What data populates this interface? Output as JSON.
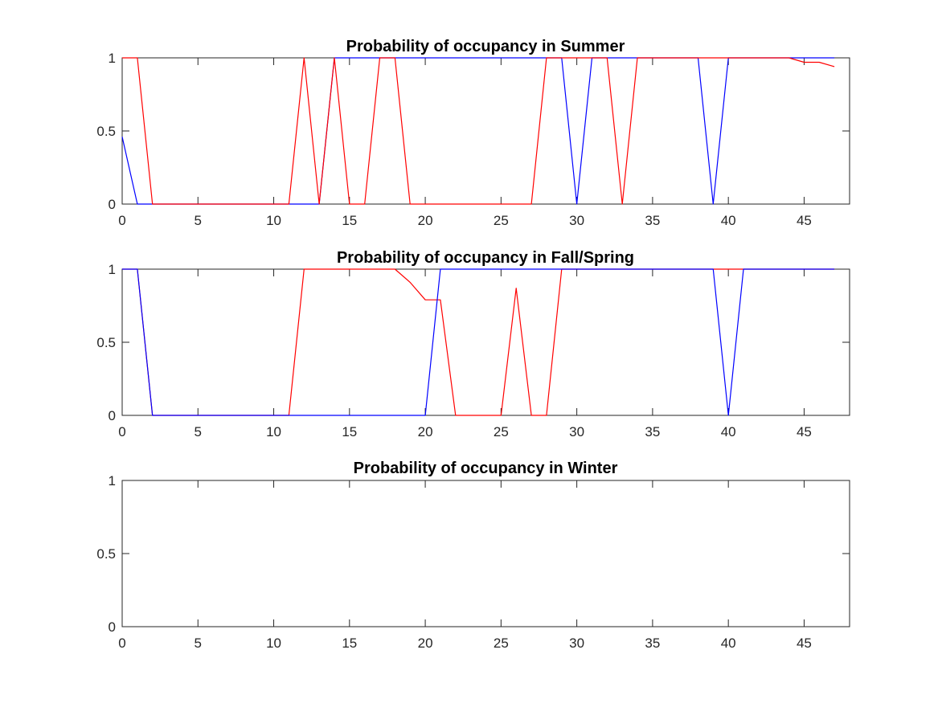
{
  "chart_data": [
    {
      "type": "line",
      "title": "Probability of occupancy in Summer",
      "xlim": [
        0,
        48
      ],
      "ylim": [
        0,
        1
      ],
      "xticks": [
        0,
        5,
        10,
        15,
        20,
        25,
        30,
        35,
        40,
        45
      ],
      "yticks": [
        0,
        0.5,
        1
      ],
      "grid": false,
      "series": [
        {
          "color": "#0000ff",
          "x": [
            0,
            1,
            2,
            3,
            4,
            5,
            6,
            7,
            8,
            9,
            10,
            11,
            12,
            13,
            14,
            15,
            16,
            17,
            18,
            19,
            20,
            21,
            22,
            23,
            24,
            25,
            26,
            27,
            28,
            29,
            30,
            31,
            32,
            33,
            34,
            35,
            36,
            37,
            38,
            39,
            40,
            41,
            42,
            43,
            44,
            45,
            46,
            47
          ],
          "y": [
            0.46,
            0,
            0,
            0,
            0,
            0,
            0,
            0,
            0,
            0,
            0,
            0,
            0,
            0,
            1,
            1,
            1,
            1,
            1,
            1,
            1,
            1,
            1,
            1,
            1,
            1,
            1,
            1,
            1,
            1,
            0,
            1,
            1,
            1,
            1,
            1,
            1,
            1,
            1,
            0,
            1,
            1,
            1,
            1,
            1,
            1,
            1,
            1
          ]
        },
        {
          "color": "#ff0000",
          "x": [
            0,
            1,
            2,
            3,
            4,
            5,
            6,
            7,
            8,
            9,
            10,
            11,
            12,
            13,
            14,
            15,
            16,
            17,
            18,
            19,
            20,
            21,
            22,
            23,
            24,
            25,
            26,
            27,
            28,
            29,
            30,
            31,
            32,
            33,
            34,
            35,
            36,
            37,
            38,
            39,
            40,
            41,
            42,
            43,
            44,
            45,
            46,
            47
          ],
          "y": [
            1,
            1,
            0,
            0,
            0,
            0,
            0,
            0,
            0,
            0,
            0,
            0,
            1,
            0,
            1,
            0,
            0,
            1,
            1,
            0,
            0,
            0,
            0,
            0,
            0,
            0,
            0,
            0,
            1,
            1,
            1,
            1,
            1,
            0,
            1,
            1,
            1,
            1,
            1,
            1,
            1,
            1,
            1,
            1,
            1,
            0.97,
            0.97,
            0.94
          ]
        }
      ]
    },
    {
      "type": "line",
      "title": "Probability of occupancy in Fall/Spring",
      "xlim": [
        0,
        48
      ],
      "ylim": [
        0,
        1
      ],
      "xticks": [
        0,
        5,
        10,
        15,
        20,
        25,
        30,
        35,
        40,
        45
      ],
      "yticks": [
        0,
        0.5,
        1
      ],
      "grid": false,
      "series": [
        {
          "color": "#ff0000",
          "x": [
            0,
            1,
            2,
            3,
            4,
            5,
            6,
            7,
            8,
            9,
            10,
            11,
            12,
            13,
            14,
            15,
            16,
            17,
            18,
            19,
            20,
            21,
            22,
            23,
            24,
            25,
            26,
            27,
            28,
            29,
            30,
            31,
            32,
            33,
            34,
            35,
            36,
            37,
            38,
            39,
            40,
            41,
            42,
            43,
            44,
            45,
            46,
            47
          ],
          "y": [
            1,
            1,
            0,
            0,
            0,
            0,
            0,
            0,
            0,
            0,
            0,
            0,
            1,
            1,
            1,
            1,
            1,
            1,
            1,
            0.91,
            0.79,
            0.79,
            0,
            0,
            0,
            0,
            0.87,
            0,
            0,
            1,
            1,
            1,
            1,
            1,
            1,
            1,
            1,
            1,
            1,
            1,
            1,
            1,
            1,
            1,
            1,
            1,
            1,
            1
          ]
        },
        {
          "color": "#0000ff",
          "x": [
            0,
            1,
            2,
            3,
            4,
            5,
            6,
            7,
            8,
            9,
            10,
            11,
            12,
            13,
            14,
            15,
            16,
            17,
            18,
            19,
            20,
            21,
            22,
            23,
            24,
            25,
            26,
            27,
            28,
            29,
            30,
            31,
            32,
            33,
            34,
            35,
            36,
            37,
            38,
            39,
            40,
            41,
            42,
            43,
            44,
            45,
            46,
            47
          ],
          "y": [
            1,
            1,
            0,
            0,
            0,
            0,
            0,
            0,
            0,
            0,
            0,
            0,
            0,
            0,
            0,
            0,
            0,
            0,
            0,
            0,
            0,
            1,
            1,
            1,
            1,
            1,
            1,
            1,
            1,
            1,
            1,
            1,
            1,
            1,
            1,
            1,
            1,
            1,
            1,
            1,
            0,
            1,
            1,
            1,
            1,
            1,
            1,
            1
          ]
        }
      ]
    },
    {
      "type": "line",
      "title": "Probability of occupancy in Winter",
      "xlim": [
        0,
        48
      ],
      "ylim": [
        0,
        1
      ],
      "xticks": [
        0,
        5,
        10,
        15,
        20,
        25,
        30,
        35,
        40,
        45
      ],
      "yticks": [
        0,
        0.5,
        1
      ],
      "grid": false,
      "series": []
    }
  ]
}
